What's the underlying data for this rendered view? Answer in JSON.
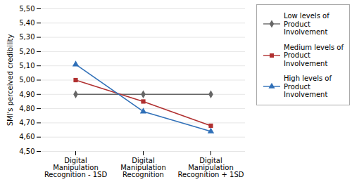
{
  "chart_data": {
    "type": "line",
    "categories": [
      "Digital Manipulation Recognition - 1SD",
      "Digital Manipulation Recognition",
      "Digital Manipulation Recognition + 1SD"
    ],
    "series": [
      {
        "name": "Low levels of\nProduct\nInvolvement",
        "color": "#666666",
        "marker": "diamond",
        "values": [
          4.9,
          4.9,
          4.9
        ]
      },
      {
        "name": "Medium levels of\nProduct\nInvolvement",
        "color": "#b03030",
        "marker": "square",
        "values": [
          5.0,
          4.85,
          4.68
        ]
      },
      {
        "name": "High levels of\nProduct\nInvolvement",
        "color": "#3070b8",
        "marker": "triangle",
        "values": [
          5.11,
          4.78,
          4.64
        ]
      }
    ],
    "ylabel": "SMI's perceived credibility",
    "ylim": [
      4.5,
      5.5
    ],
    "yticks": [
      {
        "value": 4.5,
        "label": "4,50"
      },
      {
        "value": 4.6,
        "label": "4,60"
      },
      {
        "value": 4.7,
        "label": "4,70"
      },
      {
        "value": 4.8,
        "label": "4,80"
      },
      {
        "value": 4.9,
        "label": "4,90"
      },
      {
        "value": 5.0,
        "label": "5,00"
      },
      {
        "value": 5.1,
        "label": "5,10"
      },
      {
        "value": 5.2,
        "label": "5,20"
      },
      {
        "value": 5.3,
        "label": "5,30"
      },
      {
        "value": 5.4,
        "label": "5,40"
      },
      {
        "value": 5.5,
        "label": "5,50"
      }
    ],
    "grid": true,
    "legend": "right"
  }
}
